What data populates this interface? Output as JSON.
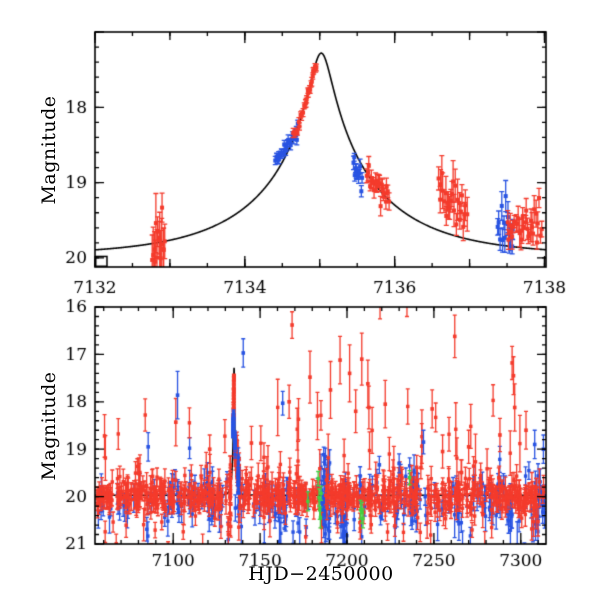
{
  "chart_data": {
    "type": "scatter",
    "title": "",
    "colors": {
      "red": "#f43b2c",
      "blue": "#2853e2",
      "green": "#42d142",
      "curve": "#000000",
      "axis": "#000000"
    },
    "top_panel": {
      "ylabel": "Magnitude",
      "x_range": [
        7132,
        7138.02
      ],
      "y_range_mag": [
        17.0,
        20.12
      ],
      "y_inverted": true,
      "x_ticks": {
        "labels": [
          {
            "v": 7132,
            "t": "7132"
          },
          {
            "v": 7134,
            "t": "7134"
          },
          {
            "v": 7136,
            "t": "7136"
          },
          {
            "v": 7138,
            "t": "7138"
          }
        ],
        "mid": 1,
        "minor": 0.5
      },
      "y_ticks": {
        "labels": [
          {
            "v": 18,
            "t": "18"
          },
          {
            "v": 19,
            "t": "19"
          },
          {
            "v": 20,
            "t": "20"
          }
        ],
        "major": 1,
        "minor": 0.2
      },
      "model_curve": {
        "type": "paczynski",
        "t0": 7135.02,
        "tE": 1.62,
        "u0": 0.0842,
        "baseline_mag": 19.97,
        "peak_mag": 17.28
      },
      "corner_box": {
        "t_right": 7132.16,
        "mag_top": 19.98,
        "style": "open-square"
      },
      "clusters": [
        {
          "name": "pre-peak-red",
          "color": "red",
          "t_start": 7132.76,
          "t_end": 7132.94,
          "mag_start": 19.72,
          "mag_end": 19.78,
          "scatter": 0.17,
          "err_min": 0.18,
          "err_max": 0.42,
          "n": 15,
          "seed": 11
        },
        {
          "name": "rise-blue",
          "color": "blue",
          "t_start": 7134.4,
          "t_end": 7134.72,
          "mag_start": 18.73,
          "mag_end": 18.27,
          "scatter": 0.035,
          "err_min": 0.04,
          "err_max": 0.07,
          "n": 24,
          "seed": 12
        },
        {
          "name": "rise-red-1",
          "color": "red",
          "t_start": 7134.64,
          "t_end": 7134.79,
          "mag_start": 18.42,
          "mag_end": 18.04,
          "scatter": 0.04,
          "err_min": 0.04,
          "err_max": 0.07,
          "n": 9,
          "seed": 13
        },
        {
          "name": "rise-red-2",
          "color": "red",
          "t_start": 7134.79,
          "t_end": 7134.96,
          "mag_start": 18.0,
          "mag_end": 17.4,
          "scatter": 0.03,
          "err_min": 0.035,
          "err_max": 0.06,
          "n": 16,
          "seed": 14
        },
        {
          "name": "fall-blue",
          "color": "blue",
          "t_start": 7135.44,
          "t_end": 7135.57,
          "mag_start": 18.68,
          "mag_end": 19.02,
          "scatter": 0.07,
          "err_min": 0.05,
          "err_max": 0.1,
          "n": 12,
          "seed": 15
        },
        {
          "name": "fall-red-1",
          "color": "red",
          "t_start": 7135.62,
          "t_end": 7135.93,
          "mag_start": 18.88,
          "mag_end": 19.2,
          "scatter": 0.07,
          "err_min": 0.06,
          "err_max": 0.13,
          "n": 22,
          "seed": 16
        },
        {
          "name": "fall-red-2",
          "color": "red",
          "t_start": 7136.58,
          "t_end": 7136.97,
          "mag_start": 19.18,
          "mag_end": 19.45,
          "scatter": 0.14,
          "err_min": 0.1,
          "err_max": 0.28,
          "n": 26,
          "seed": 17
        },
        {
          "name": "late-blue",
          "color": "blue",
          "t_start": 7137.37,
          "t_end": 7137.59,
          "mag_start": 19.5,
          "mag_end": 19.65,
          "scatter": 0.19,
          "err_min": 0.09,
          "err_max": 0.22,
          "n": 14,
          "seed": 18
        },
        {
          "name": "late-red",
          "color": "red",
          "t_start": 7137.5,
          "t_end": 7137.97,
          "mag_start": 19.58,
          "mag_end": 19.66,
          "scatter": 0.15,
          "err_min": 0.08,
          "err_max": 0.2,
          "n": 30,
          "seed": 19
        }
      ]
    },
    "bottom_panel": {
      "xlabel": "HJD−2450000",
      "ylabel": "Magnitude",
      "x_range": [
        7055,
        7314.5
      ],
      "y_range_mag": [
        16,
        21
      ],
      "y_inverted": true,
      "x_ticks": {
        "labels": [
          {
            "v": 7100,
            "t": "7100"
          },
          {
            "v": 7150,
            "t": "7150"
          },
          {
            "v": 7200,
            "t": "7200"
          },
          {
            "v": 7250,
            "t": "7250"
          },
          {
            "v": 7300,
            "t": "7300"
          }
        ],
        "mid": null,
        "minor": 10
      },
      "y_ticks": {
        "labels": [
          {
            "v": 16,
            "t": "16"
          },
          {
            "v": 17,
            "t": "17"
          },
          {
            "v": 18,
            "t": "18"
          },
          {
            "v": 19,
            "t": "19"
          },
          {
            "v": 20,
            "t": "20"
          },
          {
            "v": 21,
            "t": "21"
          }
        ],
        "major": 1,
        "minor": 0.2
      },
      "model_curve": {
        "type": "paczynski",
        "t0": 7135.02,
        "tE": 1.62,
        "u0": 0.0842,
        "baseline_mag": 19.97
      },
      "includes_top_clusters": true,
      "noise_bands": [
        {
          "color": "blue",
          "t_min": 7056,
          "t_max": 7313.8,
          "n": 150,
          "mag_mean": 20.1,
          "mag_sigma": 0.3,
          "err_min": 0.15,
          "err_max": 0.35,
          "seed": 31
        },
        {
          "color": "blue",
          "t_min": 7097,
          "t_max": 7104,
          "n": 14,
          "mag_mean": 20.0,
          "mag_sigma": 0.3,
          "err_min": 0.15,
          "err_max": 0.3,
          "seed": 32
        },
        {
          "color": "blue",
          "t_min": 7118,
          "t_max": 7124,
          "n": 12,
          "mag_mean": 20.05,
          "mag_sigma": 0.28,
          "err_min": 0.15,
          "err_max": 0.3,
          "seed": 33
        },
        {
          "color": "blue",
          "t_min": 7154,
          "t_max": 7166,
          "n": 20,
          "mag_mean": 20.3,
          "mag_sigma": 0.3,
          "err_min": 0.15,
          "err_max": 0.3,
          "seed": 34
        },
        {
          "color": "blue",
          "t_min": 7185,
          "t_max": 7190,
          "n": 34,
          "mag_mean": 20.05,
          "mag_sigma": 0.38,
          "err_min": 0.15,
          "err_max": 0.3,
          "seed": 35
        },
        {
          "color": "blue",
          "t_min": 7196,
          "t_max": 7200,
          "n": 14,
          "mag_mean": 20.55,
          "mag_sigma": 0.25,
          "err_min": 0.2,
          "err_max": 0.35,
          "seed": 36
        },
        {
          "color": "blue",
          "t_min": 7228,
          "t_max": 7241,
          "n": 26,
          "mag_mean": 20.0,
          "mag_sigma": 0.32,
          "err_min": 0.15,
          "err_max": 0.3,
          "seed": 37
        },
        {
          "color": "blue",
          "t_min": 7286,
          "t_max": 7297,
          "n": 16,
          "mag_mean": 19.95,
          "mag_sigma": 0.3,
          "err_min": 0.15,
          "err_max": 0.3,
          "seed": 38
        },
        {
          "color": "blue",
          "t_min": 7306,
          "t_max": 7313.5,
          "n": 14,
          "mag_mean": 20.05,
          "mag_sigma": 0.3,
          "err_min": 0.15,
          "err_max": 0.3,
          "seed": 39
        },
        {
          "color": "blue",
          "t_min": 7090,
          "t_max": 7310,
          "n": 13,
          "mag_mean": 20.85,
          "mag_sigma": 0.25,
          "err_min": 0.3,
          "err_max": 0.5,
          "seed": 40
        },
        {
          "color": "red",
          "t_min": 7056,
          "t_max": 7130.5,
          "n": 190,
          "mag_mean": 20.0,
          "mag_sigma": 0.13,
          "err_min": 0.1,
          "err_max": 0.28,
          "seed": 41
        },
        {
          "color": "red",
          "t_min": 7138.3,
          "t_max": 7144.2,
          "n": 20,
          "mag_mean": 19.95,
          "mag_sigma": 0.15,
          "err_min": 0.1,
          "err_max": 0.28,
          "seed": 42
        },
        {
          "color": "red",
          "t_min": 7146.5,
          "t_max": 7183.4,
          "n": 105,
          "mag_mean": 20.0,
          "mag_sigma": 0.15,
          "err_min": 0.1,
          "err_max": 0.28,
          "seed": 43
        },
        {
          "color": "red",
          "t_min": 7187.5,
          "t_max": 7242.5,
          "n": 140,
          "mag_mean": 20.0,
          "mag_sigma": 0.16,
          "err_min": 0.1,
          "err_max": 0.28,
          "seed": 44
        },
        {
          "color": "red",
          "t_min": 7246.5,
          "t_max": 7313.5,
          "n": 170,
          "mag_mean": 20.0,
          "mag_sigma": 0.15,
          "err_min": 0.1,
          "err_max": 0.28,
          "seed": 45
        },
        {
          "color": "red",
          "t_min": 7056,
          "t_max": 7313,
          "n": 48,
          "mag_mean": 19.55,
          "mag_sigma": 0.12,
          "err_min": 0.15,
          "err_max": 0.3,
          "seed": 46
        },
        {
          "color": "red",
          "t_min": 7056,
          "t_max": 7313,
          "n": 55,
          "mag_mean": 20.55,
          "mag_sigma": 0.2,
          "err_min": 0.15,
          "err_max": 0.35,
          "seed": 47
        },
        {
          "color": "red",
          "t_min": 7140,
          "t_max": 7313,
          "n": 30,
          "mag_mean": 18.95,
          "mag_sigma": 0.4,
          "err_min": 0.3,
          "err_max": 0.6,
          "seed": 48
        },
        {
          "color": "red",
          "t_min": 7058,
          "t_max": 7130,
          "n": 8,
          "mag_mean": 19.15,
          "mag_sigma": 0.3,
          "err_min": 0.25,
          "err_max": 0.5,
          "seed": 49
        }
      ],
      "outliers": [
        [
          7060.5,
          18.72,
          0.45,
          "red"
        ],
        [
          7085.6,
          18.95,
          0.3,
          "blue"
        ],
        [
          7101.5,
          18.43,
          0.5,
          "red"
        ],
        [
          7102.5,
          17.86,
          0.5,
          "blue"
        ],
        [
          7121.0,
          19.0,
          0.3,
          "red"
        ],
        [
          7140.3,
          16.97,
          0.3,
          "blue"
        ],
        [
          7145.0,
          18.87,
          0.35,
          "red"
        ],
        [
          7163.0,
          18.03,
          0.25,
          "blue"
        ],
        [
          7166.7,
          18.0,
          0.35,
          "red"
        ],
        [
          7168.4,
          16.38,
          0.28,
          "red"
        ],
        [
          7178.7,
          17.48,
          0.55,
          "red"
        ],
        [
          7183.0,
          18.3,
          0.5,
          "red"
        ],
        [
          7190.5,
          17.75,
          0.6,
          "red"
        ],
        [
          7196.0,
          17.12,
          0.5,
          "red"
        ],
        [
          7201.5,
          17.4,
          0.6,
          "red"
        ],
        [
          7205.0,
          18.2,
          0.45,
          "red"
        ],
        [
          7208.5,
          17.1,
          0.55,
          "red"
        ],
        [
          7212.0,
          17.62,
          0.5,
          "red"
        ],
        [
          7212.6,
          18.12,
          0.45,
          "red"
        ],
        [
          7218.6,
          19.33,
          0.18,
          "blue"
        ],
        [
          7219.0,
          15.7,
          0.55,
          "red"
        ],
        [
          7222.0,
          18.05,
          0.5,
          "red"
        ],
        [
          7230.0,
          19.3,
          0.2,
          "blue"
        ],
        [
          7234.5,
          15.6,
          0.6,
          "red"
        ],
        [
          7244.0,
          18.85,
          0.25,
          "blue"
        ],
        [
          7249.0,
          18.15,
          0.4,
          "red"
        ],
        [
          7255.0,
          19.05,
          0.35,
          "red"
        ],
        [
          7262.0,
          16.62,
          0.45,
          "red"
        ],
        [
          7270.0,
          18.95,
          0.35,
          "red"
        ],
        [
          7288.0,
          18.7,
          0.35,
          "red"
        ],
        [
          7295.0,
          17.18,
          0.35,
          "red"
        ],
        [
          7295.8,
          17.45,
          0.4,
          "red"
        ],
        [
          7296.5,
          18.12,
          0.5,
          "red"
        ],
        [
          7303.0,
          18.6,
          0.4,
          "red"
        ],
        [
          7308.0,
          18.9,
          0.3,
          "blue"
        ],
        [
          7313.0,
          19.0,
          0.3,
          "blue"
        ]
      ],
      "green_points": [
        [
          7177.5,
          20.1,
          0.2
        ],
        [
          7183.4,
          19.62,
          0.15
        ],
        [
          7183.9,
          20.02,
          0.18
        ],
        [
          7184.3,
          20.28,
          0.2
        ],
        [
          7184.7,
          20.44,
          0.22
        ],
        [
          7185.1,
          19.93,
          0.15
        ],
        [
          7207.8,
          20.28,
          0.2
        ],
        [
          7208.6,
          20.34,
          0.22
        ],
        [
          7209.2,
          20.46,
          0.2
        ],
        [
          7236.0,
          19.6,
          0.15
        ]
      ]
    }
  }
}
